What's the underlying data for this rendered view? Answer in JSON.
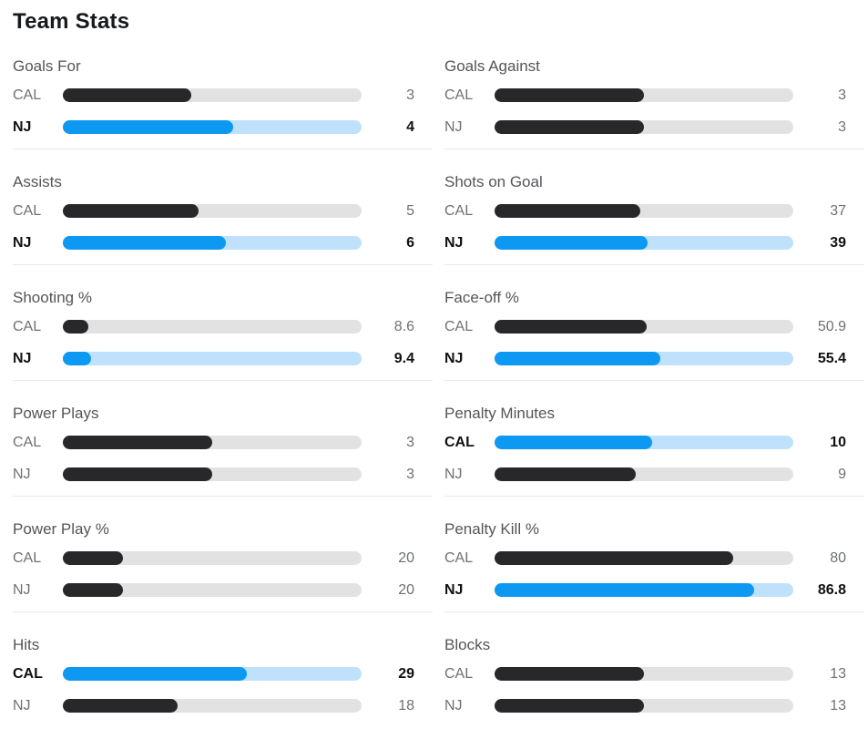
{
  "header": {
    "title": "Team Stats"
  },
  "teams": [
    "CAL",
    "NJ"
  ],
  "colors": {
    "accent_blue": "#0d98f2",
    "accent_blue_track": "#bfe1fb",
    "bar_dark": "#28282a",
    "bar_track": "#e2e2e2",
    "text_dark": "#111111",
    "text_gray": "#6e7074",
    "label_gray": "#54555a",
    "divider": "#e9e9e9"
  },
  "chart_data": {
    "type": "bar",
    "title": "Team Stats",
    "teams": [
      "CAL",
      "NJ"
    ],
    "groups": [
      {
        "label": "Goals For",
        "rows": [
          {
            "team": "CAL",
            "value": "3",
            "numeric": 3,
            "fill_pct": 42.9,
            "highlight": false
          },
          {
            "team": "NJ",
            "value": "4",
            "numeric": 4,
            "fill_pct": 57.1,
            "highlight": true
          }
        ]
      },
      {
        "label": "Goals Against",
        "rows": [
          {
            "team": "CAL",
            "value": "3",
            "numeric": 3,
            "fill_pct": 50,
            "highlight": false
          },
          {
            "team": "NJ",
            "value": "3",
            "numeric": 3,
            "fill_pct": 50,
            "highlight": false
          }
        ]
      },
      {
        "label": "Assists",
        "rows": [
          {
            "team": "CAL",
            "value": "5",
            "numeric": 5,
            "fill_pct": 45.5,
            "highlight": false
          },
          {
            "team": "NJ",
            "value": "6",
            "numeric": 6,
            "fill_pct": 54.5,
            "highlight": true
          }
        ]
      },
      {
        "label": "Shots on Goal",
        "rows": [
          {
            "team": "CAL",
            "value": "37",
            "numeric": 37,
            "fill_pct": 48.7,
            "highlight": false
          },
          {
            "team": "NJ",
            "value": "39",
            "numeric": 39,
            "fill_pct": 51.3,
            "highlight": true
          }
        ]
      },
      {
        "label": "Shooting %",
        "rows": [
          {
            "team": "CAL",
            "value": "8.6",
            "numeric": 8.6,
            "fill_pct": 8.6,
            "highlight": false
          },
          {
            "team": "NJ",
            "value": "9.4",
            "numeric": 9.4,
            "fill_pct": 9.4,
            "highlight": true
          }
        ]
      },
      {
        "label": "Face-off %",
        "rows": [
          {
            "team": "CAL",
            "value": "50.9",
            "numeric": 50.9,
            "fill_pct": 50.9,
            "highlight": false
          },
          {
            "team": "NJ",
            "value": "55.4",
            "numeric": 55.4,
            "fill_pct": 55.4,
            "highlight": true
          }
        ]
      },
      {
        "label": "Power Plays",
        "rows": [
          {
            "team": "CAL",
            "value": "3",
            "numeric": 3,
            "fill_pct": 50,
            "highlight": false
          },
          {
            "team": "NJ",
            "value": "3",
            "numeric": 3,
            "fill_pct": 50,
            "highlight": false
          }
        ]
      },
      {
        "label": "Penalty Minutes",
        "rows": [
          {
            "team": "CAL",
            "value": "10",
            "numeric": 10,
            "fill_pct": 52.6,
            "highlight": true
          },
          {
            "team": "NJ",
            "value": "9",
            "numeric": 9,
            "fill_pct": 47.4,
            "highlight": false
          }
        ]
      },
      {
        "label": "Power Play %",
        "rows": [
          {
            "team": "CAL",
            "value": "20",
            "numeric": 20,
            "fill_pct": 20,
            "highlight": false
          },
          {
            "team": "NJ",
            "value": "20",
            "numeric": 20,
            "fill_pct": 20,
            "highlight": false
          }
        ]
      },
      {
        "label": "Penalty Kill %",
        "rows": [
          {
            "team": "CAL",
            "value": "80",
            "numeric": 80,
            "fill_pct": 80,
            "highlight": false
          },
          {
            "team": "NJ",
            "value": "86.8",
            "numeric": 86.8,
            "fill_pct": 86.8,
            "highlight": true
          }
        ]
      },
      {
        "label": "Hits",
        "rows": [
          {
            "team": "CAL",
            "value": "29",
            "numeric": 29,
            "fill_pct": 61.7,
            "highlight": true
          },
          {
            "team": "NJ",
            "value": "18",
            "numeric": 18,
            "fill_pct": 38.3,
            "highlight": false
          }
        ]
      },
      {
        "label": "Blocks",
        "rows": [
          {
            "team": "CAL",
            "value": "13",
            "numeric": 13,
            "fill_pct": 50,
            "highlight": false
          },
          {
            "team": "NJ",
            "value": "13",
            "numeric": 13,
            "fill_pct": 50,
            "highlight": false
          }
        ]
      }
    ]
  }
}
